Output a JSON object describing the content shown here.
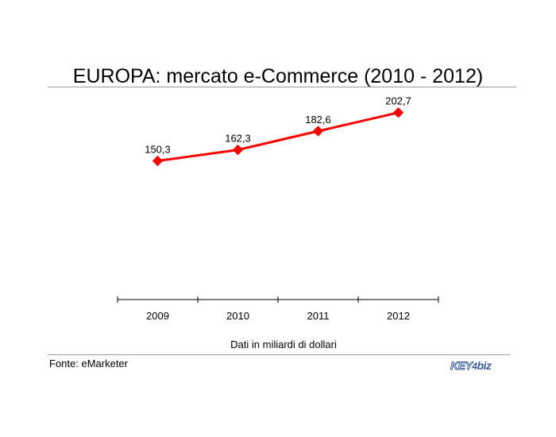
{
  "chart_data": {
    "type": "line",
    "title": "EUROPA: mercato e-Commerce (2010 - 2012)",
    "categories": [
      "2009",
      "2010",
      "2011",
      "2012"
    ],
    "series": [
      {
        "values": [
          150.3,
          162.3,
          182.6,
          202.7
        ],
        "labels": [
          "150,3",
          "162,3",
          "182,6",
          "202,7"
        ],
        "color": "#ff0000"
      }
    ],
    "xlabel": "Dati in miliardi di dollari",
    "ylabel": "",
    "ylim": [
      0,
      230
    ],
    "grid": false,
    "legend": "none"
  },
  "footer": {
    "source": "Fonte: eMarketer",
    "logo": {
      "part1": "KEY",
      "part2": "4",
      "part3": "biz"
    }
  }
}
